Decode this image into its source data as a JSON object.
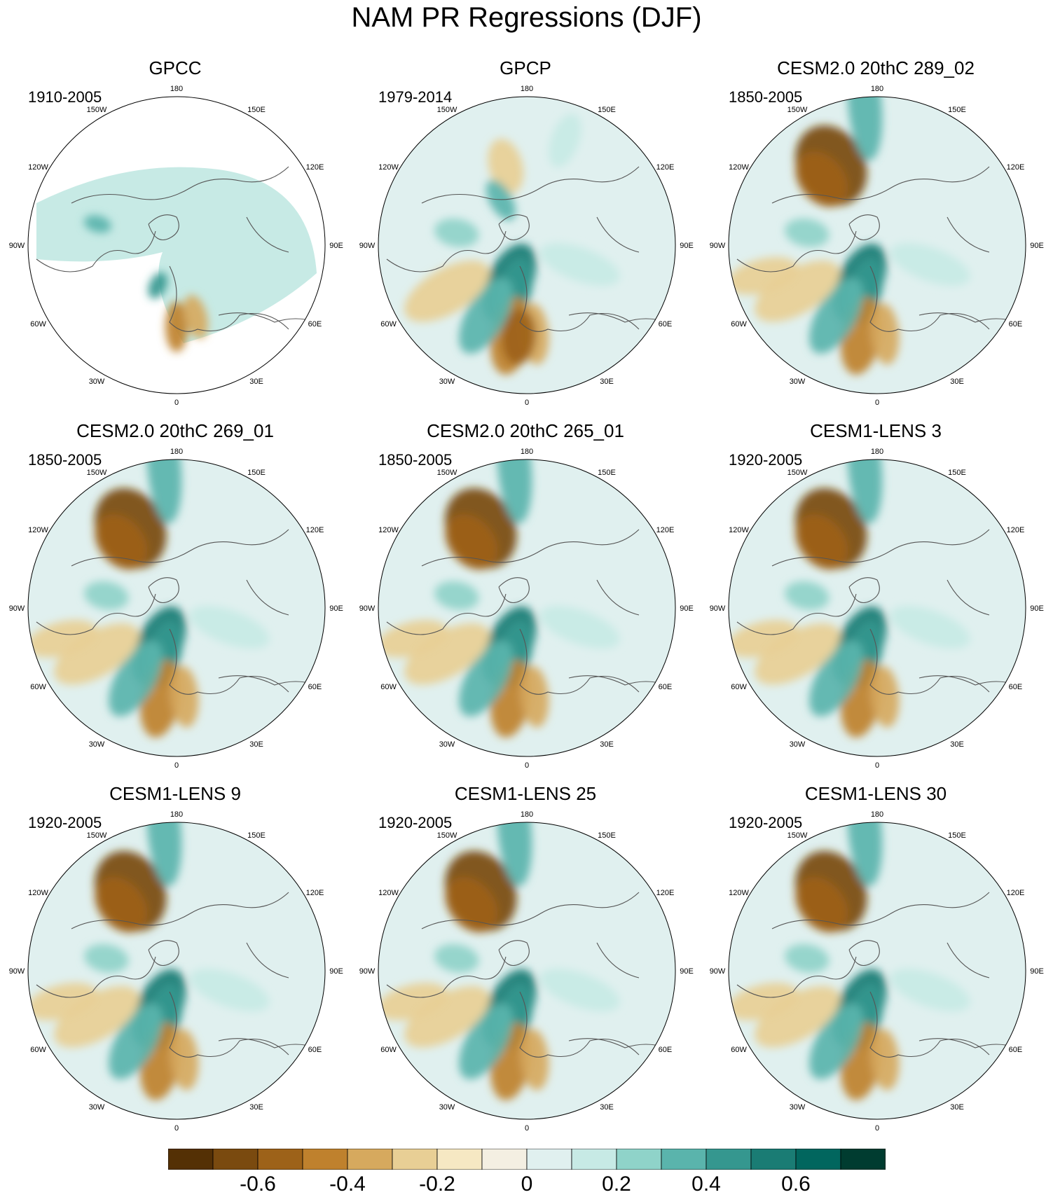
{
  "title": "NAM PR Regressions (DJF)",
  "panels": [
    {
      "title": "GPCC",
      "period": "1910-2005",
      "variant": "gpcc"
    },
    {
      "title": "GPCP",
      "period": "1979-2014",
      "variant": "obs"
    },
    {
      "title": "CESM2.0 20thC 289_02",
      "period": "1850-2005",
      "variant": "model"
    },
    {
      "title": "CESM2.0 20thC 269_01",
      "period": "1850-2005",
      "variant": "model"
    },
    {
      "title": "CESM2.0 20thC 265_01",
      "period": "1850-2005",
      "variant": "model"
    },
    {
      "title": "CESM1-LENS 3",
      "period": "1920-2005",
      "variant": "model"
    },
    {
      "title": "CESM1-LENS 9",
      "period": "1920-2005",
      "variant": "model"
    },
    {
      "title": "CESM1-LENS 25",
      "period": "1920-2005",
      "variant": "model"
    },
    {
      "title": "CESM1-LENS 30",
      "period": "1920-2005",
      "variant": "model"
    }
  ],
  "longitude_labels": [
    "180",
    "150E",
    "120E",
    "90E",
    "60E",
    "30E",
    "0",
    "30W",
    "60W",
    "90W",
    "120W",
    "150W"
  ],
  "colorbar": {
    "colors": [
      "#543005",
      "#7a4a0f",
      "#9d6219",
      "#bf812d",
      "#d6a95e",
      "#e8cf95",
      "#f6e8c3",
      "#f4efe2",
      "#e0f0ef",
      "#c7eae5",
      "#8fd3c9",
      "#5ab4ac",
      "#35978f",
      "#1a7c74",
      "#01665e",
      "#003c30"
    ],
    "tick_labels": [
      "-0.6",
      "-0.4",
      "-0.2",
      "0",
      "0.2",
      "0.4",
      "0.6"
    ],
    "tick_values": [
      -0.6,
      -0.4,
      -0.2,
      0,
      0.2,
      0.4,
      0.6
    ],
    "min": -0.8,
    "max": 0.8
  }
}
